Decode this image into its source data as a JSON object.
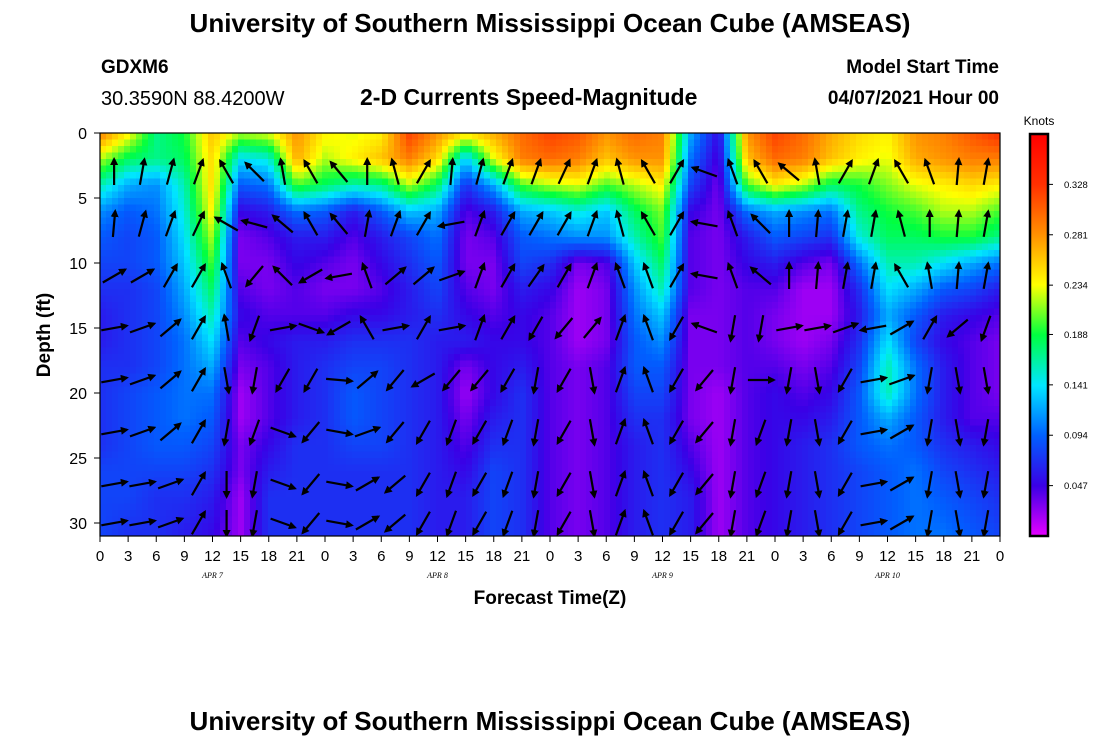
{
  "header": {
    "title": "University of Southern Mississippi Ocean Cube (AMSEAS)",
    "station_id": "GDXM6",
    "coordinates": "30.3590N  88.4200W",
    "plot_title": "2-D Currents Speed-Magnitude",
    "model_start_label": "Model Start Time",
    "model_start_value": "04/07/2021 Hour 00"
  },
  "footer": {
    "title": "University of Southern Mississippi Ocean Cube (AMSEAS)"
  },
  "chart_data": {
    "type": "heatmap",
    "xlabel": "Forecast Time(Z)",
    "ylabel": "Depth (ft)",
    "x_hours": [
      0,
      96
    ],
    "x_tick_labels": [
      "0",
      "3",
      "6",
      "9",
      "12",
      "15",
      "18",
      "21",
      "0",
      "3",
      "6",
      "9",
      "12",
      "15",
      "18",
      "21",
      "0",
      "3",
      "6",
      "9",
      "12",
      "15",
      "18",
      "21",
      "0",
      "3",
      "6",
      "9",
      "12",
      "15",
      "18",
      "21",
      "0"
    ],
    "date_labels": [
      {
        "label": "APR 7",
        "hour": 12
      },
      {
        "label": "APR 8",
        "hour": 36
      },
      {
        "label": "APR 9",
        "hour": 60
      },
      {
        "label": "APR 10",
        "hour": 84
      }
    ],
    "ylim": [
      31,
      0
    ],
    "y_ticks": [
      0,
      5,
      10,
      15,
      20,
      25,
      30
    ],
    "colorbar": {
      "units": "Knots",
      "tick_values": [
        0.047,
        0.094,
        0.141,
        0.188,
        0.234,
        0.281,
        0.328
      ],
      "tick_labels": [
        "0.047",
        "0.094",
        "0.141",
        "0.188",
        "0.234",
        "0.281",
        "0.328"
      ],
      "min": 0.0,
      "max": 0.375,
      "colors": [
        "#e600ff",
        "#3a00e6",
        "#0060ff",
        "#00e6ff",
        "#00ff40",
        "#ffff00",
        "#ff9000",
        "#ff3000",
        "#ff0000"
      ]
    },
    "speed_grid": {
      "depths_ft": [
        0,
        2,
        4,
        6,
        8,
        10,
        12,
        14,
        16,
        18,
        20,
        22,
        24,
        26,
        28,
        31
      ],
      "hours": [
        0,
        3,
        6,
        9,
        12,
        15,
        18,
        21,
        24,
        27,
        30,
        33,
        36,
        39,
        42,
        45,
        48,
        51,
        54,
        57,
        60,
        63,
        66,
        69,
        72,
        75,
        78,
        81,
        84,
        87,
        90,
        93,
        96
      ],
      "values": [
        [
          0.29,
          0.24,
          0.17,
          0.19,
          0.26,
          0.22,
          0.23,
          0.28,
          0.24,
          0.23,
          0.24,
          0.32,
          0.28,
          0.25,
          0.27,
          0.3,
          0.32,
          0.31,
          0.28,
          0.3,
          0.29,
          0.12,
          0.05,
          0.28,
          0.32,
          0.3,
          0.27,
          0.25,
          0.24,
          0.28,
          0.29,
          0.31,
          0.33
        ],
        [
          0.22,
          0.18,
          0.17,
          0.18,
          0.25,
          0.14,
          0.15,
          0.27,
          0.22,
          0.24,
          0.26,
          0.29,
          0.25,
          0.13,
          0.23,
          0.29,
          0.3,
          0.29,
          0.26,
          0.28,
          0.28,
          0.1,
          0.04,
          0.26,
          0.3,
          0.29,
          0.26,
          0.24,
          0.23,
          0.27,
          0.28,
          0.29,
          0.29
        ],
        [
          0.16,
          0.12,
          0.11,
          0.16,
          0.25,
          0.09,
          0.1,
          0.2,
          0.18,
          0.16,
          0.17,
          0.22,
          0.18,
          0.07,
          0.12,
          0.2,
          0.22,
          0.23,
          0.2,
          0.22,
          0.24,
          0.08,
          0.03,
          0.2,
          0.24,
          0.22,
          0.18,
          0.19,
          0.21,
          0.23,
          0.24,
          0.25,
          0.24
        ],
        [
          0.11,
          0.09,
          0.1,
          0.15,
          0.24,
          0.05,
          0.06,
          0.1,
          0.09,
          0.06,
          0.09,
          0.13,
          0.12,
          0.04,
          0.06,
          0.12,
          0.13,
          0.15,
          0.13,
          0.18,
          0.21,
          0.05,
          0.03,
          0.1,
          0.12,
          0.11,
          0.1,
          0.17,
          0.19,
          0.2,
          0.22,
          0.22,
          0.2
        ],
        [
          0.09,
          0.08,
          0.09,
          0.14,
          0.22,
          0.03,
          0.04,
          0.06,
          0.06,
          0.04,
          0.06,
          0.08,
          0.1,
          0.03,
          0.04,
          0.09,
          0.1,
          0.11,
          0.11,
          0.16,
          0.2,
          0.04,
          0.03,
          0.06,
          0.09,
          0.08,
          0.07,
          0.15,
          0.18,
          0.18,
          0.19,
          0.19,
          0.17
        ],
        [
          0.08,
          0.08,
          0.09,
          0.13,
          0.2,
          0.03,
          0.03,
          0.05,
          0.04,
          0.03,
          0.05,
          0.07,
          0.09,
          0.03,
          0.03,
          0.08,
          0.07,
          0.03,
          0.04,
          0.13,
          0.18,
          0.04,
          0.03,
          0.05,
          0.06,
          0.04,
          0.03,
          0.1,
          0.16,
          0.16,
          0.14,
          0.12,
          0.1
        ],
        [
          0.07,
          0.07,
          0.08,
          0.12,
          0.18,
          0.04,
          0.03,
          0.04,
          0.03,
          0.03,
          0.04,
          0.06,
          0.08,
          0.04,
          0.03,
          0.06,
          0.05,
          0.02,
          0.03,
          0.11,
          0.16,
          0.04,
          0.03,
          0.04,
          0.04,
          0.02,
          0.02,
          0.07,
          0.14,
          0.12,
          0.09,
          0.08,
          0.06
        ],
        [
          0.06,
          0.07,
          0.08,
          0.11,
          0.16,
          0.05,
          0.04,
          0.04,
          0.04,
          0.05,
          0.05,
          0.06,
          0.07,
          0.05,
          0.04,
          0.05,
          0.04,
          0.02,
          0.03,
          0.1,
          0.13,
          0.03,
          0.03,
          0.04,
          0.03,
          0.02,
          0.02,
          0.06,
          0.12,
          0.09,
          0.06,
          0.05,
          0.04
        ],
        [
          0.06,
          0.07,
          0.08,
          0.1,
          0.14,
          0.04,
          0.05,
          0.06,
          0.06,
          0.07,
          0.07,
          0.07,
          0.06,
          0.06,
          0.05,
          0.05,
          0.04,
          0.02,
          0.03,
          0.09,
          0.11,
          0.03,
          0.03,
          0.04,
          0.03,
          0.02,
          0.03,
          0.07,
          0.14,
          0.08,
          0.05,
          0.04,
          0.03
        ],
        [
          0.07,
          0.07,
          0.08,
          0.1,
          0.12,
          0.03,
          0.04,
          0.06,
          0.07,
          0.08,
          0.08,
          0.07,
          0.06,
          0.03,
          0.05,
          0.06,
          0.04,
          0.03,
          0.04,
          0.09,
          0.09,
          0.03,
          0.03,
          0.04,
          0.04,
          0.03,
          0.04,
          0.08,
          0.16,
          0.1,
          0.06,
          0.04,
          0.03
        ],
        [
          0.07,
          0.08,
          0.09,
          0.1,
          0.1,
          0.02,
          0.04,
          0.06,
          0.07,
          0.09,
          0.08,
          0.07,
          0.06,
          0.02,
          0.05,
          0.07,
          0.04,
          0.03,
          0.04,
          0.08,
          0.08,
          0.03,
          0.02,
          0.04,
          0.05,
          0.04,
          0.05,
          0.09,
          0.16,
          0.1,
          0.06,
          0.04,
          0.03
        ],
        [
          0.07,
          0.08,
          0.09,
          0.1,
          0.09,
          0.02,
          0.04,
          0.06,
          0.07,
          0.09,
          0.08,
          0.07,
          0.06,
          0.03,
          0.06,
          0.07,
          0.04,
          0.03,
          0.04,
          0.07,
          0.07,
          0.03,
          0.02,
          0.04,
          0.05,
          0.05,
          0.06,
          0.09,
          0.12,
          0.09,
          0.06,
          0.04,
          0.04
        ],
        [
          0.07,
          0.08,
          0.09,
          0.09,
          0.08,
          0.03,
          0.05,
          0.07,
          0.07,
          0.08,
          0.08,
          0.07,
          0.06,
          0.04,
          0.07,
          0.07,
          0.04,
          0.03,
          0.04,
          0.06,
          0.07,
          0.04,
          0.02,
          0.04,
          0.05,
          0.06,
          0.07,
          0.09,
          0.1,
          0.09,
          0.07,
          0.06,
          0.05
        ],
        [
          0.08,
          0.08,
          0.08,
          0.08,
          0.07,
          0.03,
          0.06,
          0.07,
          0.07,
          0.07,
          0.07,
          0.07,
          0.06,
          0.05,
          0.08,
          0.07,
          0.04,
          0.03,
          0.04,
          0.06,
          0.07,
          0.05,
          0.02,
          0.04,
          0.05,
          0.06,
          0.07,
          0.08,
          0.09,
          0.1,
          0.08,
          0.07,
          0.06
        ],
        [
          0.08,
          0.08,
          0.07,
          0.07,
          0.06,
          0.02,
          0.07,
          0.07,
          0.07,
          0.07,
          0.07,
          0.07,
          0.06,
          0.06,
          0.08,
          0.07,
          0.04,
          0.03,
          0.04,
          0.06,
          0.07,
          0.06,
          0.02,
          0.04,
          0.05,
          0.06,
          0.07,
          0.08,
          0.09,
          0.1,
          0.09,
          0.08,
          0.07
        ],
        [
          0.08,
          0.07,
          0.07,
          0.06,
          0.05,
          0.02,
          0.07,
          0.07,
          0.07,
          0.07,
          0.07,
          0.07,
          0.06,
          0.06,
          0.08,
          0.07,
          0.04,
          0.03,
          0.04,
          0.06,
          0.07,
          0.06,
          0.02,
          0.04,
          0.05,
          0.06,
          0.07,
          0.08,
          0.09,
          0.1,
          0.1,
          0.09,
          0.08
        ]
      ]
    },
    "vectors": {
      "hours": [
        1.5,
        4.5,
        7.5,
        10.5,
        13.5,
        16.5,
        19.5,
        22.5,
        25.5,
        28.5,
        31.5,
        34.5,
        37.5,
        40.5,
        43.5,
        46.5,
        49.5,
        52.5,
        55.5,
        58.5,
        61.5,
        64.5,
        67.5,
        70.5,
        73.5,
        76.5,
        79.5,
        82.5,
        85.5,
        88.5,
        91.5,
        94.5
      ],
      "depths_ft": [
        3,
        7,
        11,
        15,
        19,
        23,
        27,
        30
      ],
      "directions_deg": [
        [
          0,
          10,
          15,
          20,
          -30,
          -45,
          -10,
          -30,
          -40,
          0,
          -15,
          30,
          5,
          15,
          20,
          20,
          25,
          20,
          -15,
          -30,
          30,
          -70,
          -20,
          -30,
          -50,
          -10,
          30,
          20,
          -30,
          -20,
          5,
          10
        ],
        [
          5,
          15,
          20,
          25,
          -60,
          -75,
          -50,
          -30,
          -40,
          10,
          20,
          30,
          -100,
          20,
          30,
          30,
          30,
          20,
          -15,
          -30,
          30,
          -80,
          -20,
          -45,
          0,
          5,
          10,
          10,
          -15,
          0,
          5,
          10
        ],
        [
          60,
          60,
          30,
          30,
          -20,
          -140,
          -45,
          -120,
          -100,
          -20,
          50,
          50,
          70,
          20,
          30,
          35,
          30,
          20,
          -20,
          -20,
          30,
          -80,
          -20,
          -50,
          0,
          5,
          10,
          10,
          -30,
          -10,
          5,
          10
        ],
        [
          80,
          70,
          50,
          30,
          -10,
          -160,
          80,
          110,
          -120,
          -30,
          80,
          30,
          80,
          20,
          30,
          -150,
          -140,
          40,
          20,
          -20,
          -150,
          -70,
          -170,
          -170,
          80,
          80,
          70,
          -100,
          60,
          30,
          -130,
          -160
        ],
        [
          80,
          70,
          50,
          30,
          170,
          -170,
          -150,
          -150,
          95,
          50,
          -140,
          -120,
          -140,
          -140,
          -150,
          -170,
          -150,
          170,
          20,
          -20,
          -150,
          -140,
          -170,
          90,
          -170,
          170,
          -150,
          80,
          70,
          -170,
          170,
          170
        ],
        [
          80,
          70,
          50,
          30,
          -170,
          -160,
          110,
          -140,
          100,
          70,
          -140,
          -150,
          -160,
          -150,
          -160,
          -170,
          -150,
          170,
          20,
          -20,
          -150,
          -140,
          -170,
          -160,
          -170,
          170,
          -150,
          80,
          60,
          -170,
          170,
          -170
        ],
        [
          80,
          80,
          70,
          30,
          180,
          -170,
          110,
          -140,
          100,
          60,
          -130,
          -150,
          -160,
          -150,
          -160,
          -170,
          -150,
          170,
          20,
          -20,
          -150,
          -140,
          -170,
          -160,
          -170,
          170,
          -150,
          80,
          60,
          -170,
          170,
          -170
        ],
        [
          80,
          80,
          70,
          30,
          180,
          -170,
          110,
          -140,
          100,
          60,
          -130,
          -150,
          -160,
          -150,
          -160,
          -170,
          -150,
          170,
          20,
          -20,
          -150,
          -140,
          -170,
          -160,
          -170,
          170,
          -150,
          80,
          60,
          -170,
          170,
          -170
        ]
      ]
    }
  }
}
